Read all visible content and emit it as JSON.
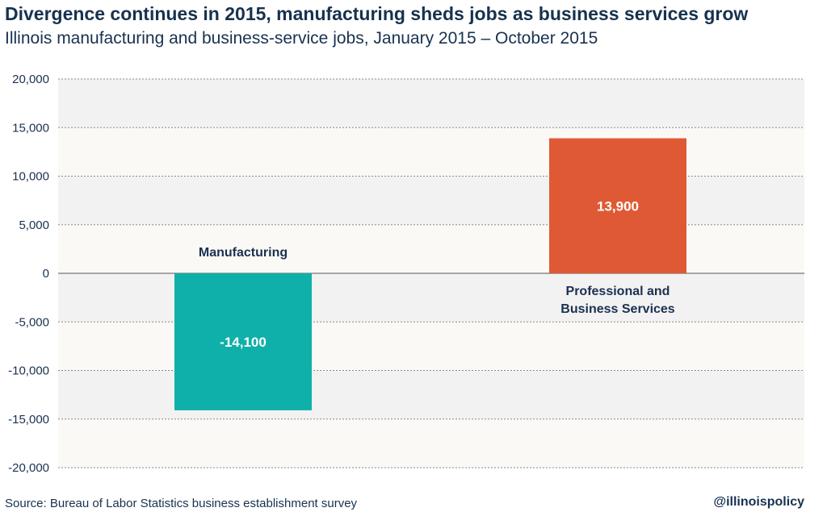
{
  "header": {
    "title": "Divergence continues in 2015, manufacturing sheds jobs as business services grow",
    "subtitle": "Illinois manufacturing and business-service jobs, January 2015 – October 2015"
  },
  "footer": {
    "source": "Source: Bureau of Labor Statistics business establishment survey",
    "handle": "@illinoispolicy"
  },
  "colors": {
    "manufacturing": "#0fb0a9",
    "business_services": "#df5a34",
    "band_light": "#fbf9f6",
    "band_dark": "#f2f2f2",
    "text": "#1a3050"
  },
  "chart_data": {
    "type": "bar",
    "title": "Divergence continues in 2015, manufacturing sheds jobs as business services grow",
    "subtitle": "Illinois manufacturing and business-service jobs, January 2015 – October 2015",
    "categories": [
      "Manufacturing",
      "Professional and Business Services"
    ],
    "category_label_lines": [
      [
        "Manufacturing"
      ],
      [
        "Professional and",
        "Business Services"
      ]
    ],
    "values": [
      -14100,
      13900
    ],
    "value_labels": [
      "-14,100",
      "13,900"
    ],
    "ylim": [
      -20000,
      20000
    ],
    "yticks": [
      20000,
      15000,
      10000,
      5000,
      0,
      -5000,
      -10000,
      -15000,
      -20000
    ],
    "ytick_labels": [
      "20,000",
      "15,000",
      "10,000",
      "5,000",
      "0",
      "-5,000",
      "-10,000",
      "-15,000",
      "-20,000"
    ],
    "grid": true,
    "legend": "none"
  }
}
